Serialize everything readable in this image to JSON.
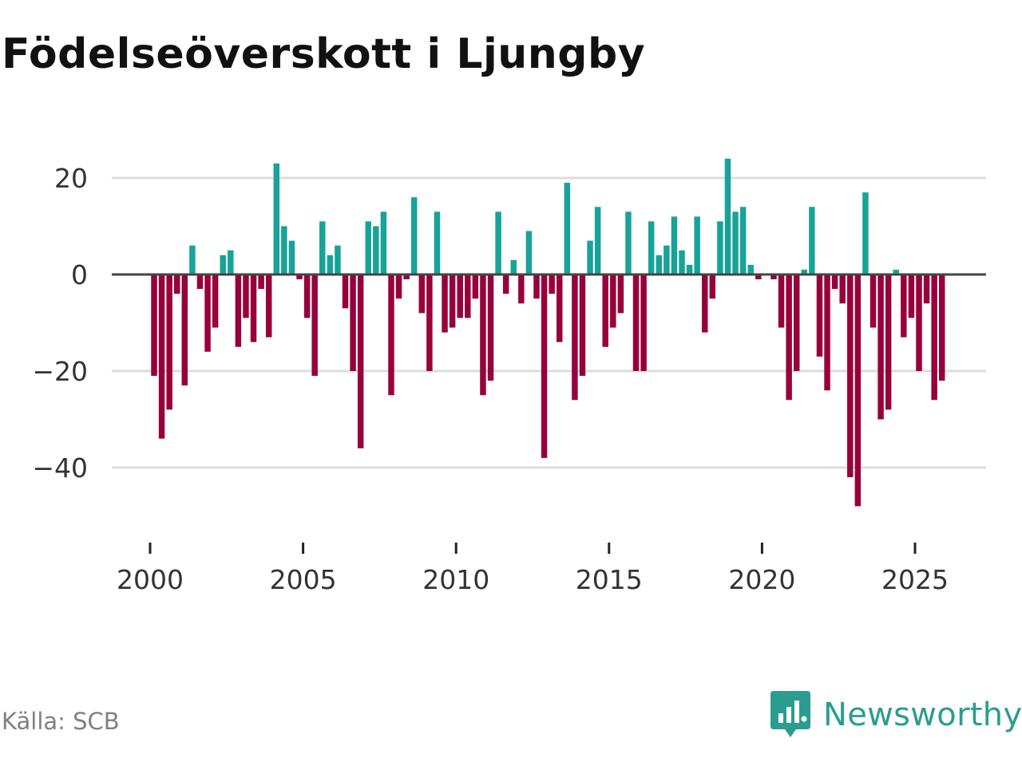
{
  "title": "Födelseöverskott i Ljungby",
  "source": "Källa: SCB",
  "brand": {
    "name": "Newsworthy",
    "icon": "newsworthy-logo-icon",
    "color": "#2a9d8f"
  },
  "colors": {
    "positive": "#17a398",
    "negative": "#98003b",
    "zero_line": "#444444",
    "grid": "#dddddd",
    "axis_tick": "#222222"
  },
  "chart_data": {
    "type": "bar",
    "title": "Födelseöverskott i Ljungby",
    "xlabel": "",
    "ylabel": "",
    "ylim": [
      -48,
      25
    ],
    "xlim": [
      1999.0,
      2027.2
    ],
    "y_ticks": [
      20,
      0,
      -20,
      -40
    ],
    "y_tick_labels": [
      "20",
      "0",
      "−20",
      "−40"
    ],
    "x_ticks": [
      2000,
      2005,
      2010,
      2015,
      2020,
      2025
    ],
    "x_tick_labels": [
      "2000",
      "2005",
      "2010",
      "2015",
      "2020",
      "2025"
    ],
    "frequency": "quarterly",
    "start": 2000.0,
    "step": 0.25,
    "grid": true,
    "values": [
      -21,
      -34,
      -28,
      -4,
      -23,
      6,
      -3,
      -16,
      -11,
      4,
      5,
      -15,
      -9,
      -14,
      -3,
      -13,
      23,
      10,
      7,
      -1,
      -9,
      -21,
      11,
      4,
      6,
      -7,
      -20,
      -36,
      11,
      10,
      13,
      -25,
      -5,
      -1,
      16,
      -8,
      -20,
      13,
      -12,
      -11,
      -9,
      -9,
      -5,
      -25,
      -22,
      13,
      -4,
      3,
      -6,
      9,
      -5,
      -38,
      -4,
      -14,
      19,
      -26,
      -21,
      7,
      14,
      -15,
      -11,
      -8,
      13,
      -20,
      -20,
      11,
      4,
      6,
      12,
      5,
      2,
      12,
      -12,
      -5,
      11,
      24,
      13,
      14,
      2,
      -1,
      0,
      -1,
      -11,
      -26,
      -20,
      1,
      14,
      -17,
      -24,
      -3,
      -6,
      -42,
      -48,
      17,
      -11,
      -30,
      -28,
      1,
      -13,
      -9,
      -20,
      -6,
      -26,
      -22
    ]
  }
}
